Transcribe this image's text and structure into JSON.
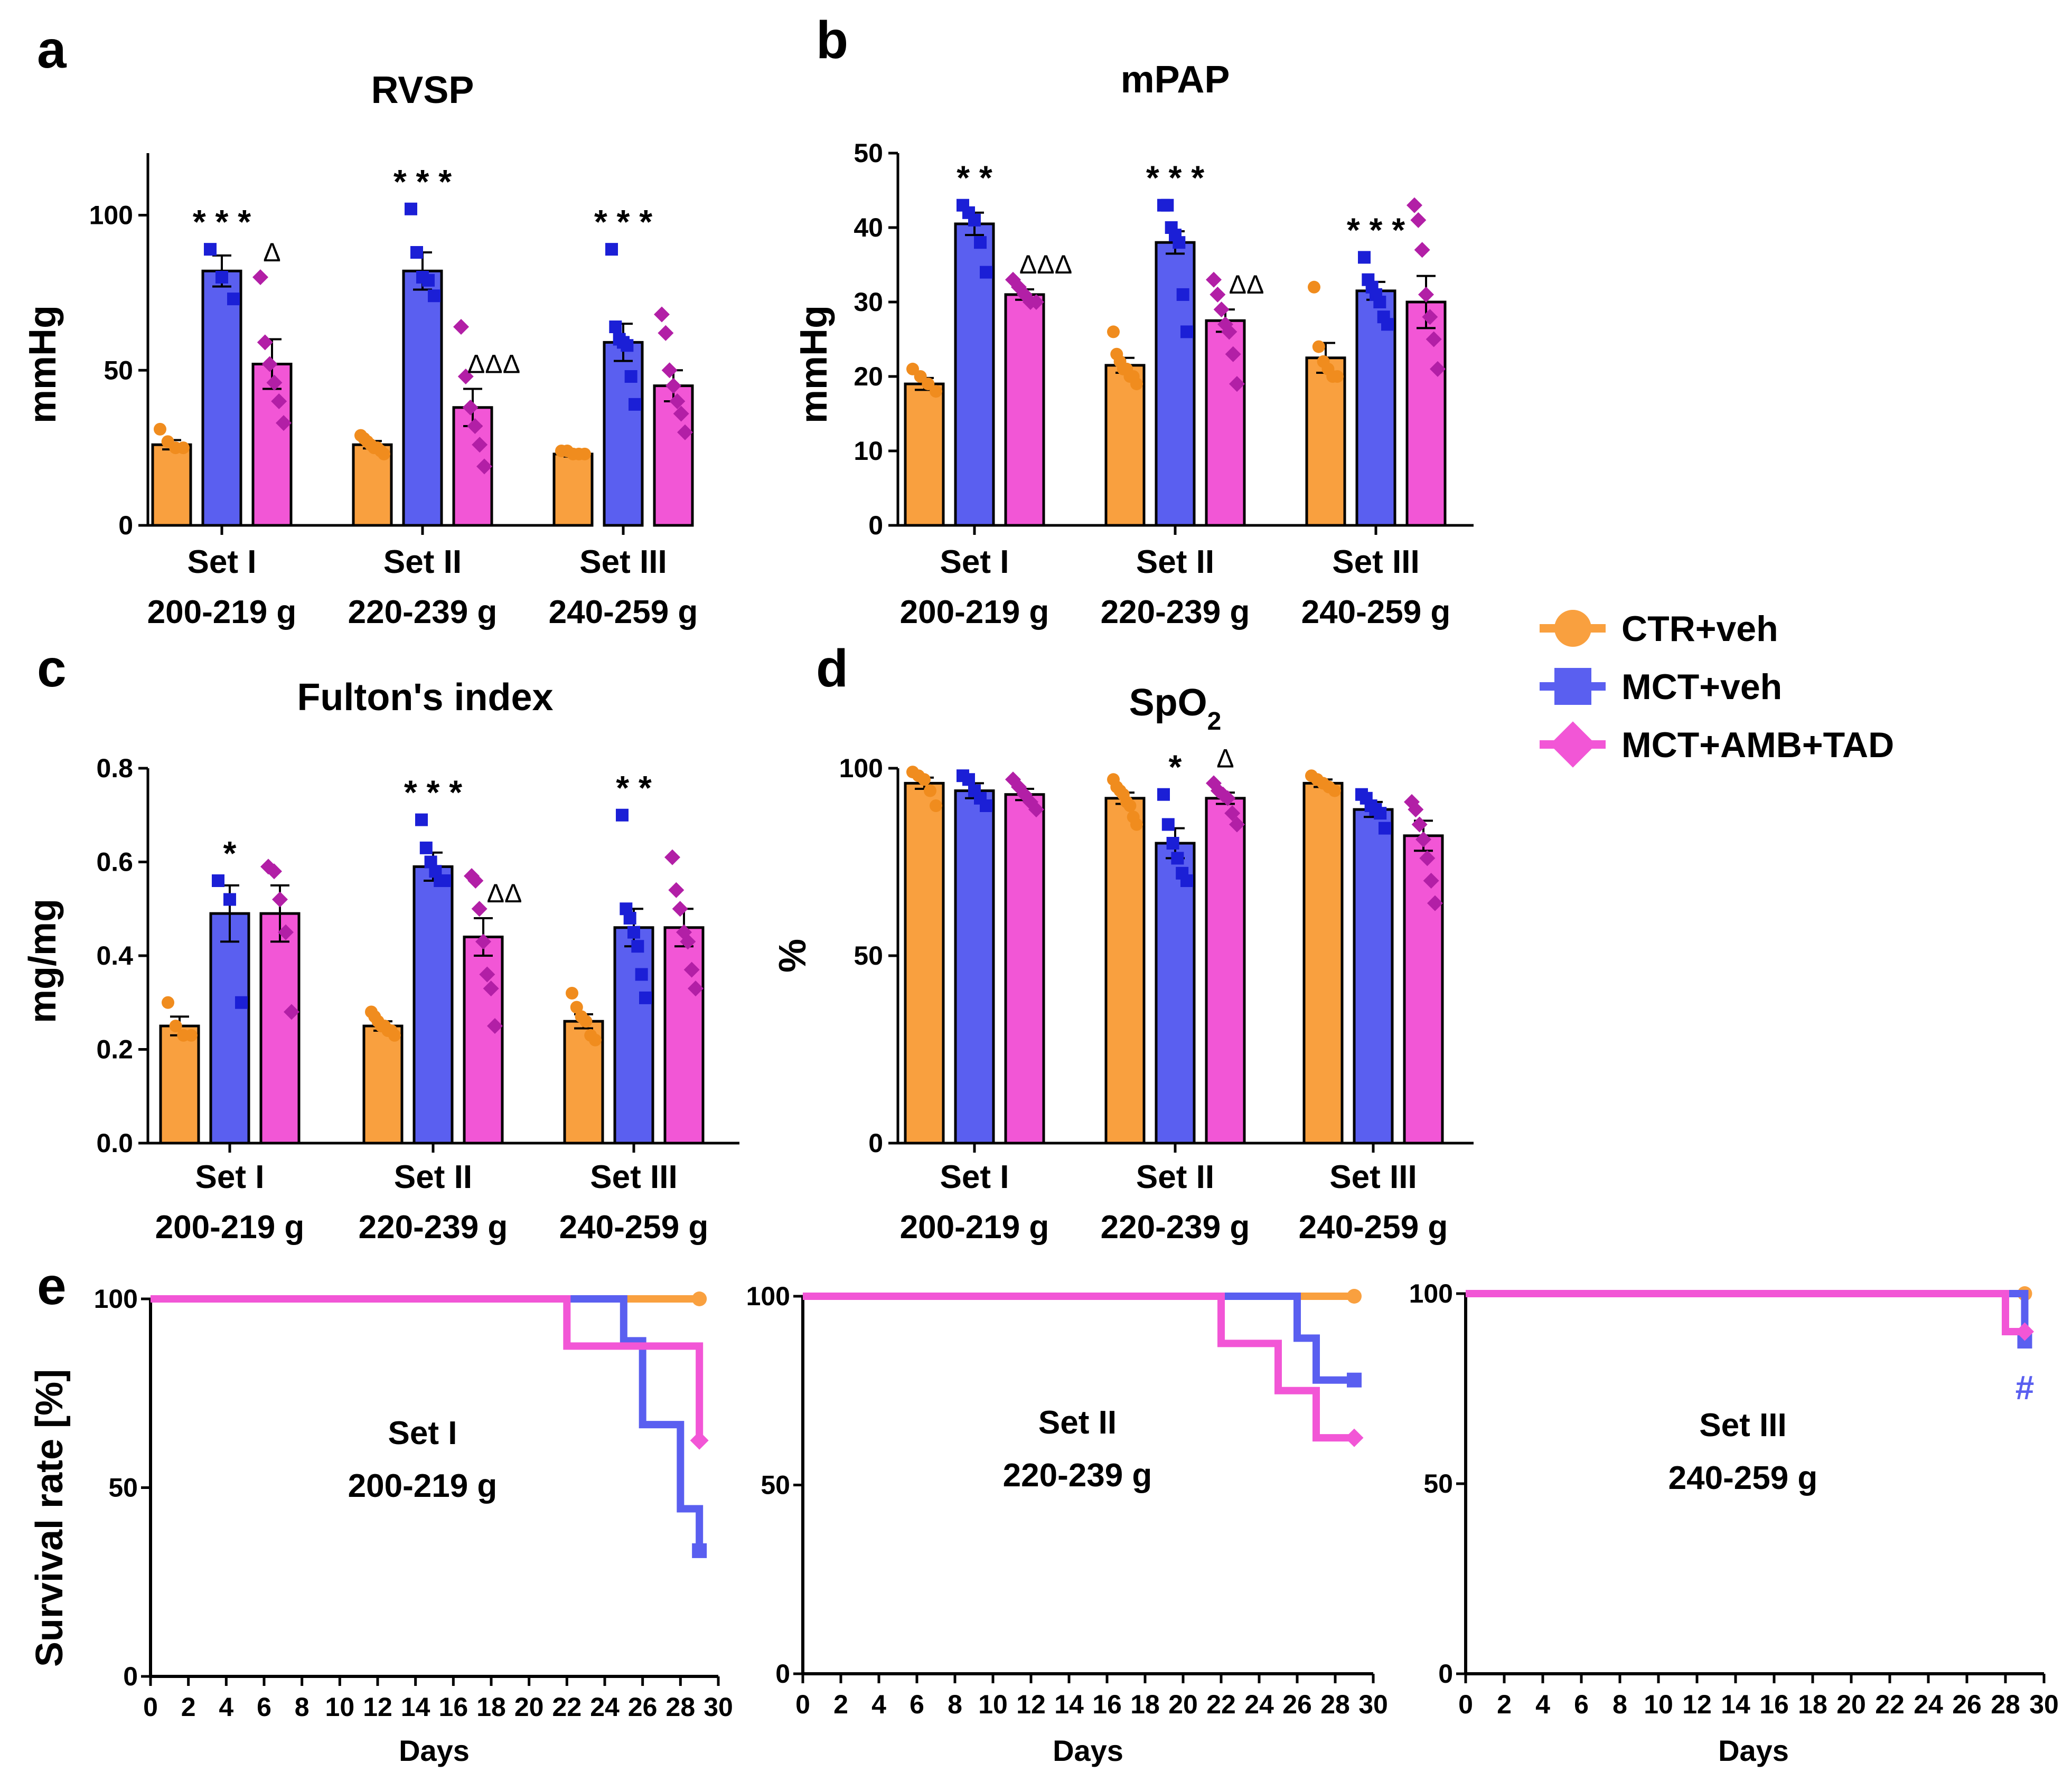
{
  "legend": [
    {
      "name": "CTR+veh",
      "color": "#f9a03f",
      "marker": "circle"
    },
    {
      "name": "MCT+veh",
      "color": "#5a5ff0",
      "marker": "square"
    },
    {
      "name": "MCT+AMB+TAD",
      "color": "#f256d6",
      "marker": "diamond"
    }
  ],
  "point_colors": [
    "#f08c1e",
    "#1b1fd6",
    "#b21fa6"
  ],
  "chart_data": [
    {
      "panel": "a",
      "type": "bar",
      "title": "RVSP",
      "title_sub": "",
      "ylabel": "mmHg",
      "ylim": [
        0,
        120
      ],
      "yticks": [
        0,
        50,
        100
      ],
      "yticklabels": [
        "0",
        "50",
        "100"
      ],
      "categories": [
        {
          "line1": "Set I",
          "line2": "200-219 g"
        },
        {
          "line1": "Set II",
          "line2": "220-239 g"
        },
        {
          "line1": "Set III",
          "line2": "240-259 g"
        }
      ],
      "series": [
        {
          "name": "CTR+veh",
          "values": [
            26,
            26,
            23
          ],
          "sem": [
            1.5,
            1.2,
            0.8
          ],
          "points": [
            [
              31,
              27,
              25,
              25
            ],
            [
              29,
              28,
              27,
              26,
              25,
              25,
              24,
              23
            ],
            [
              24,
              24,
              23,
              23,
              23
            ]
          ]
        },
        {
          "name": "MCT+veh",
          "values": [
            82,
            82,
            59
          ],
          "sem": [
            5,
            6,
            6
          ],
          "points": [
            [
              89,
              80,
              73
            ],
            [
              102,
              88,
              80,
              79,
              74
            ],
            [
              89,
              64,
              60,
              59,
              58,
              48,
              39
            ]
          ]
        },
        {
          "name": "MCT+AMB+TAD",
          "values": [
            52,
            38,
            45
          ],
          "sem": [
            8,
            6,
            5
          ],
          "points": [
            [
              80,
              59,
              52,
              46,
              40,
              33
            ],
            [
              64,
              48,
              38,
              32,
              26,
              19
            ],
            [
              68,
              62,
              50,
              45,
              40,
              36,
              30
            ]
          ]
        }
      ],
      "significance": [
        {
          "category": 0,
          "series": 1,
          "text": "* * *"
        },
        {
          "category": 0,
          "series": 2,
          "text": "Δ"
        },
        {
          "category": 1,
          "series": 1,
          "text": "* * *"
        },
        {
          "category": 1,
          "series": 2,
          "text": "ΔΔΔ"
        },
        {
          "category": 2,
          "series": 1,
          "text": "* * *"
        }
      ]
    },
    {
      "panel": "b",
      "type": "bar",
      "title": "mPAP",
      "title_sub": "",
      "ylabel": "mmHg",
      "ylim": [
        0,
        50
      ],
      "yticks": [
        0,
        10,
        20,
        30,
        40,
        50
      ],
      "yticklabels": [
        "0",
        "10",
        "20",
        "30",
        "40",
        "50"
      ],
      "categories": [
        {
          "line1": "Set I",
          "line2": "200-219 g"
        },
        {
          "line1": "Set II",
          "line2": "220-239 g"
        },
        {
          "line1": "Set III",
          "line2": "240-259 g"
        }
      ],
      "series": [
        {
          "name": "CTR+veh",
          "values": [
            19,
            21.5,
            22.5
          ],
          "sem": [
            0.8,
            1.0,
            2.0
          ],
          "points": [
            [
              21,
              20,
              19,
              18
            ],
            [
              26,
              23,
              22,
              21,
              21,
              20,
              20,
              19
            ],
            [
              32,
              24,
              22,
              21,
              20,
              20
            ]
          ]
        },
        {
          "name": "MCT+veh",
          "values": [
            40.5,
            38,
            31.5
          ],
          "sem": [
            1.5,
            1.5,
            1.2
          ],
          "points": [
            [
              43,
              42,
              41,
              38,
              34
            ],
            [
              43,
              43,
              40,
              39,
              38,
              31,
              26
            ],
            [
              36,
              33,
              32,
              31,
              30,
              28,
              27
            ]
          ]
        },
        {
          "name": "MCT+AMB+TAD",
          "values": [
            31,
            27.5,
            30
          ],
          "sem": [
            0.7,
            1.5,
            3.5
          ],
          "points": [
            [
              33,
              32,
              31,
              30,
              30
            ],
            [
              33,
              31,
              29,
              27,
              26,
              23,
              19
            ],
            [
              43,
              41,
              37,
              31,
              28,
              25,
              21
            ]
          ]
        }
      ],
      "significance": [
        {
          "category": 0,
          "series": 1,
          "text": "* *"
        },
        {
          "category": 0,
          "series": 2,
          "text": "ΔΔΔ"
        },
        {
          "category": 1,
          "series": 1,
          "text": "* * *"
        },
        {
          "category": 1,
          "series": 2,
          "text": "ΔΔ"
        },
        {
          "category": 2,
          "series": 1,
          "text": "* * *"
        }
      ]
    },
    {
      "panel": "c",
      "type": "bar",
      "title": "Fulton's index",
      "title_sub": "",
      "ylabel": "mg/mg",
      "ylim": [
        0,
        0.8
      ],
      "yticks": [
        0,
        0.2,
        0.4,
        0.6,
        0.8
      ],
      "yticklabels": [
        "0.0",
        "0.2",
        "0.4",
        "0.6",
        "0.8"
      ],
      "categories": [
        {
          "line1": "Set I",
          "line2": "200-219 g"
        },
        {
          "line1": "Set II",
          "line2": "220-239 g"
        },
        {
          "line1": "Set III",
          "line2": "240-259 g"
        }
      ],
      "series": [
        {
          "name": "CTR+veh",
          "values": [
            0.25,
            0.25,
            0.26
          ],
          "sem": [
            0.02,
            0.01,
            0.015
          ],
          "points": [
            [
              0.3,
              0.25,
              0.23,
              0.23
            ],
            [
              0.28,
              0.27,
              0.26,
              0.25,
              0.25,
              0.24,
              0.24,
              0.23
            ],
            [
              0.32,
              0.29,
              0.27,
              0.26,
              0.23,
              0.22
            ]
          ]
        },
        {
          "name": "MCT+veh",
          "values": [
            0.49,
            0.59,
            0.46
          ],
          "sem": [
            0.06,
            0.03,
            0.04
          ],
          "points": [
            [
              0.56,
              0.52,
              0.3
            ],
            [
              0.69,
              0.63,
              0.6,
              0.58,
              0.56,
              0.56
            ],
            [
              0.7,
              0.5,
              0.48,
              0.45,
              0.42,
              0.36,
              0.31
            ]
          ]
        },
        {
          "name": "MCT+AMB+TAD",
          "values": [
            0.49,
            0.44,
            0.46
          ],
          "sem": [
            0.06,
            0.04,
            0.04
          ],
          "points": [
            [
              0.59,
              0.58,
              0.52,
              0.45,
              0.28
            ],
            [
              0.57,
              0.56,
              0.5,
              0.43,
              0.36,
              0.33,
              0.25
            ],
            [
              0.61,
              0.54,
              0.5,
              0.45,
              0.43,
              0.37,
              0.33
            ]
          ]
        }
      ],
      "significance": [
        {
          "category": 0,
          "series": 1,
          "text": "*"
        },
        {
          "category": 1,
          "series": 1,
          "text": "* * *"
        },
        {
          "category": 1,
          "series": 2,
          "text": "ΔΔ"
        },
        {
          "category": 2,
          "series": 1,
          "text": "* *"
        }
      ]
    },
    {
      "panel": "d",
      "type": "bar",
      "title": "SpO",
      "title_sub": "2",
      "ylabel": "%",
      "ylim": [
        0,
        100
      ],
      "yticks": [
        0,
        50,
        100
      ],
      "yticklabels": [
        "0",
        "50",
        "100"
      ],
      "categories": [
        {
          "line1": "Set I",
          "line2": "200-219 g"
        },
        {
          "line1": "Set II",
          "line2": "220-239 g"
        },
        {
          "line1": "Set III",
          "line2": "240-259 g"
        }
      ],
      "series": [
        {
          "name": "CTR+veh",
          "values": [
            96,
            92,
            96
          ],
          "sem": [
            1.5,
            1.5,
            1.0
          ],
          "points": [
            [
              99,
              98,
              97,
              94,
              90
            ],
            [
              97,
              95,
              94,
              93,
              91,
              90,
              87,
              85
            ],
            [
              98,
              97,
              96,
              95,
              94
            ]
          ]
        },
        {
          "name": "MCT+veh",
          "values": [
            94,
            80,
            89
          ],
          "sem": [
            2,
            4,
            2
          ],
          "points": [
            [
              98,
              97,
              94,
              92,
              90
            ],
            [
              93,
              85,
              80,
              76,
              72,
              70
            ],
            [
              93,
              92,
              90,
              89,
              88,
              84
            ]
          ]
        },
        {
          "name": "MCT+AMB+TAD",
          "values": [
            93,
            92,
            82
          ],
          "sem": [
            1.5,
            1.5,
            4
          ],
          "points": [
            [
              97,
              95,
              93,
              91,
              89
            ],
            [
              96,
              94,
              93,
              92,
              88,
              85
            ],
            [
              91,
              89,
              85,
              81,
              76,
              70,
              64
            ]
          ]
        }
      ],
      "significance": [
        {
          "category": 1,
          "series": 1,
          "text": "*"
        },
        {
          "category": 1,
          "series": 2,
          "text": "Δ"
        }
      ]
    },
    {
      "panel": "e",
      "type": "line",
      "step": true,
      "title": "",
      "ylabel": "Survival rate [%]",
      "xlabel": "Days",
      "xlim": [
        0,
        30
      ],
      "ylim": [
        0,
        100
      ],
      "xticks": [
        0,
        2,
        4,
        6,
        8,
        10,
        12,
        14,
        16,
        18,
        20,
        22,
        24,
        26,
        28,
        30
      ],
      "xticklabels": [
        "0",
        "2",
        "4",
        "6",
        "8",
        "10",
        "12",
        "14",
        "16",
        "18",
        "20",
        "22",
        "24",
        "26",
        "28",
        "30"
      ],
      "yticks": [
        0,
        50,
        100
      ],
      "yticklabels": [
        "0",
        "50",
        "100"
      ],
      "subplots": [
        {
          "line1": "Set I",
          "line2": "200-219 g",
          "note": "",
          "series": [
            {
              "name": "CTR+veh",
              "x": [
                0,
                29
              ],
              "y": [
                100,
                100
              ]
            },
            {
              "name": "MCT+veh",
              "x": [
                0,
                25,
                26,
                28,
                29
              ],
              "y": [
                100,
                88.9,
                66.7,
                44.4,
                33.3
              ]
            },
            {
              "name": "MCT+AMB+TAD",
              "x": [
                0,
                22,
                29
              ],
              "y": [
                100,
                87.5,
                62.5
              ]
            }
          ]
        },
        {
          "line1": "Set II",
          "line2": "220-239 g",
          "note": "",
          "series": [
            {
              "name": "CTR+veh",
              "x": [
                0,
                29
              ],
              "y": [
                100,
                100
              ]
            },
            {
              "name": "MCT+veh",
              "x": [
                0,
                26,
                27,
                29
              ],
              "y": [
                100,
                88.9,
                77.8,
                77.8
              ]
            },
            {
              "name": "MCT+AMB+TAD",
              "x": [
                0,
                22,
                25,
                27,
                29
              ],
              "y": [
                100,
                87.5,
                75,
                62.5,
                62.5
              ]
            }
          ]
        },
        {
          "line1": "Set III",
          "line2": "240-259 g",
          "note": "#",
          "series": [
            {
              "name": "CTR+veh",
              "x": [
                0,
                29
              ],
              "y": [
                100,
                100
              ]
            },
            {
              "name": "MCT+veh",
              "x": [
                0,
                29
              ],
              "y": [
                100,
                87.5
              ]
            },
            {
              "name": "MCT+AMB+TAD",
              "x": [
                0,
                28,
                29
              ],
              "y": [
                100,
                90,
                90
              ]
            }
          ]
        }
      ]
    }
  ]
}
